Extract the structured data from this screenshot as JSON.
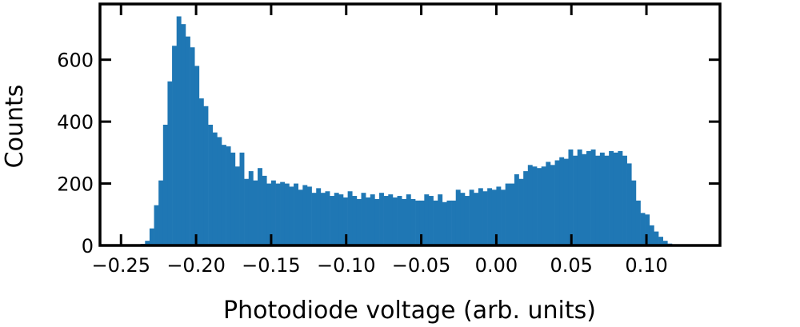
{
  "chart_data": {
    "type": "histogram",
    "xlabel": "Photodiode voltage (arb. units)",
    "ylabel": "Counts",
    "color": "#1f77b4",
    "bins": [
      -0.24,
      -0.237,
      -0.234,
      -0.231,
      -0.228,
      -0.225,
      -0.222,
      -0.219,
      -0.216,
      -0.213,
      -0.21,
      -0.207,
      -0.204,
      -0.201,
      -0.198,
      -0.195,
      -0.192,
      -0.189,
      -0.186,
      -0.183,
      -0.18,
      -0.177,
      -0.174,
      -0.171,
      -0.168,
      -0.165,
      -0.162,
      -0.159,
      -0.156,
      -0.153,
      -0.15,
      -0.147,
      -0.144,
      -0.141,
      -0.138,
      -0.135,
      -0.132,
      -0.129,
      -0.126,
      -0.123,
      -0.12,
      -0.117,
      -0.114,
      -0.111,
      -0.108,
      -0.105,
      -0.102,
      -0.099,
      -0.096,
      -0.093,
      -0.09,
      -0.087,
      -0.084,
      -0.081,
      -0.078,
      -0.075,
      -0.072,
      -0.069,
      -0.066,
      -0.063,
      -0.06,
      -0.057,
      -0.054,
      -0.051,
      -0.048,
      -0.045,
      -0.042,
      -0.039,
      -0.036,
      -0.033,
      -0.03,
      -0.027,
      -0.024,
      -0.021,
      -0.018,
      -0.015,
      -0.012,
      -0.009,
      -0.006,
      -0.003,
      0,
      0.003,
      0.006,
      0.009,
      0.012,
      0.015,
      0.018,
      0.021,
      0.024,
      0.027,
      0.03,
      0.033,
      0.036,
      0.039,
      0.042,
      0.045,
      0.048,
      0.051,
      0.054,
      0.057,
      0.06,
      0.063,
      0.066,
      0.069,
      0.072,
      0.075,
      0.078,
      0.081,
      0.084,
      0.087,
      0.09,
      0.093,
      0.096,
      0.099,
      0.102,
      0.105,
      0.108,
      0.111,
      0.114,
      0.117,
      0.12
    ],
    "counts": [
      2,
      5,
      15,
      55,
      130,
      210,
      390,
      530,
      645,
      740,
      715,
      675,
      640,
      580,
      475,
      450,
      390,
      365,
      350,
      325,
      320,
      300,
      255,
      300,
      215,
      240,
      210,
      250,
      225,
      200,
      210,
      200,
      205,
      200,
      190,
      200,
      180,
      195,
      190,
      170,
      185,
      170,
      175,
      160,
      170,
      165,
      155,
      175,
      160,
      150,
      170,
      155,
      165,
      150,
      170,
      160,
      165,
      155,
      160,
      150,
      165,
      150,
      145,
      145,
      165,
      160,
      145,
      165,
      140,
      145,
      145,
      180,
      170,
      160,
      180,
      170,
      185,
      175,
      185,
      180,
      190,
      180,
      200,
      200,
      230,
      215,
      240,
      260,
      255,
      250,
      255,
      270,
      260,
      275,
      285,
      280,
      310,
      290,
      310,
      295,
      305,
      310,
      290,
      300,
      290,
      305,
      300,
      305,
      290,
      265,
      210,
      145,
      105,
      100,
      65,
      45,
      28,
      15,
      6,
      2
    ],
    "xlim": [
      -0.264,
      0.149
    ],
    "ylim": [
      0,
      780
    ],
    "xticks": [
      {
        "value": -0.25,
        "label": "−0.25"
      },
      {
        "value": -0.2,
        "label": "−0.20"
      },
      {
        "value": -0.15,
        "label": "−0.15"
      },
      {
        "value": -0.1,
        "label": "−0.10"
      },
      {
        "value": -0.05,
        "label": "−0.05"
      },
      {
        "value": 0,
        "label": "0.00"
      },
      {
        "value": 0.05,
        "label": "0.05"
      },
      {
        "value": 0.1,
        "label": "0.10"
      }
    ],
    "yticks": [
      0,
      200,
      400,
      600
    ]
  }
}
